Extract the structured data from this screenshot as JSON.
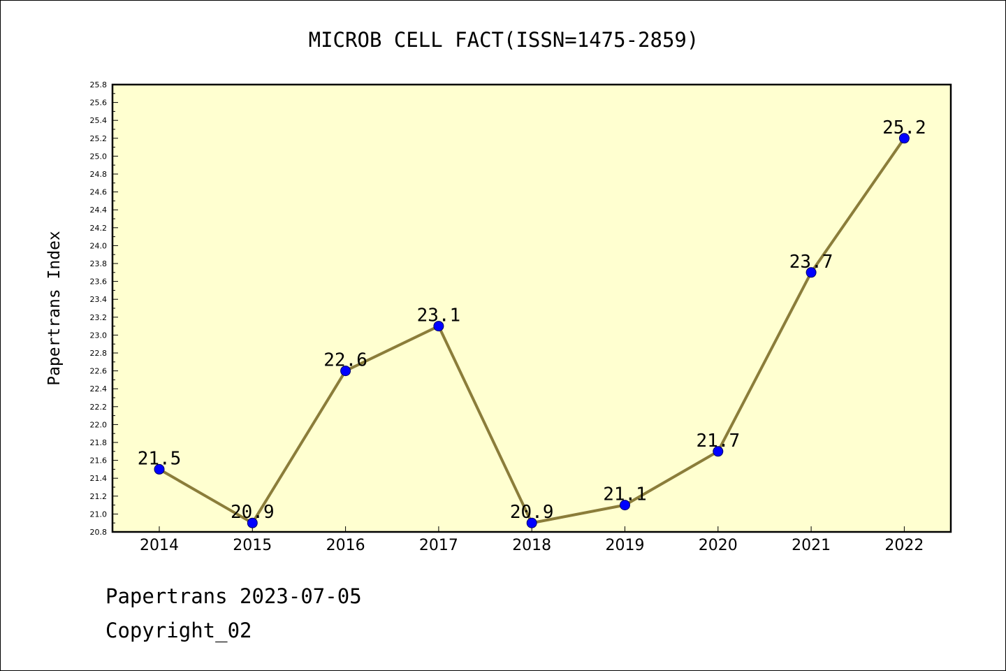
{
  "chart_data": {
    "type": "line",
    "title": "MICROB CELL FACT(ISSN=1475-2859)",
    "xlabel": "",
    "ylabel": "Papertrans Index",
    "categories": [
      "2014",
      "2015",
      "2016",
      "2017",
      "2018",
      "2019",
      "2020",
      "2021",
      "2022"
    ],
    "series": [
      {
        "values": [
          21.5,
          20.9,
          22.6,
          23.1,
          20.9,
          21.1,
          21.7,
          23.7,
          25.2
        ],
        "data_labels": [
          "21.5",
          "20.9",
          "22.6",
          "23.1",
          "20.9",
          "21.1",
          "21.7",
          "23.7",
          "25.2"
        ]
      }
    ],
    "ylim": [
      20.8,
      25.8
    ],
    "yticks": [
      "20.8",
      "21.0",
      "21.2",
      "21.4",
      "21.6",
      "21.8",
      "22.0",
      "22.2",
      "22.4",
      "22.6",
      "22.8",
      "23.0",
      "23.2",
      "23.4",
      "23.6",
      "23.8",
      "24.0",
      "24.2",
      "24.4",
      "24.6",
      "24.8",
      "25.0",
      "25.2",
      "25.4",
      "25.6",
      "25.8"
    ],
    "grid": false,
    "legend": "none",
    "colors": {
      "plot_background": "#ffffd0",
      "line": "#8b7d3a",
      "marker": "#0000ff",
      "axis": "#000000"
    }
  },
  "footer": {
    "line1": "Papertrans 2023-07-05",
    "line2": "Copyright_02"
  }
}
